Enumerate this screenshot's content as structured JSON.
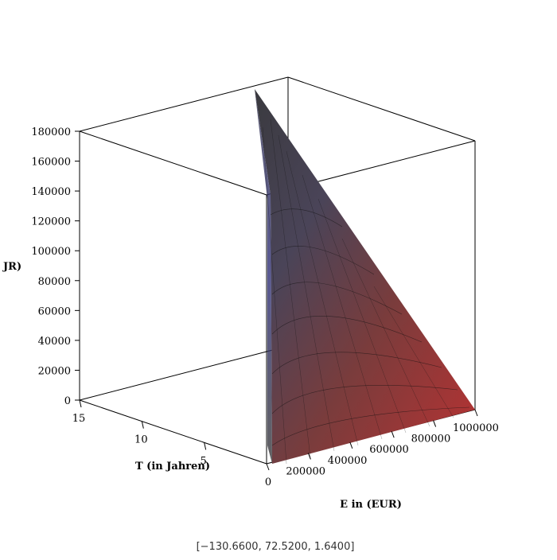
{
  "chart_data": {
    "type": "surface3d",
    "xlabel": "E in (EUR)",
    "ylabel": "T (in Jahren)",
    "zlabel": "JR)",
    "caption": "[−130.6600, 72.5200, 1.6400]",
    "xlim": [
      0,
      1000000
    ],
    "xticks": [
      0,
      200000,
      400000,
      600000,
      800000,
      1000000
    ],
    "ylim": [
      0,
      15
    ],
    "yticks": [
      5,
      10,
      15
    ],
    "zlim": [
      0,
      180000
    ],
    "zticks": [
      0,
      20000,
      40000,
      60000,
      80000,
      100000,
      120000,
      140000,
      160000,
      180000
    ]
  }
}
